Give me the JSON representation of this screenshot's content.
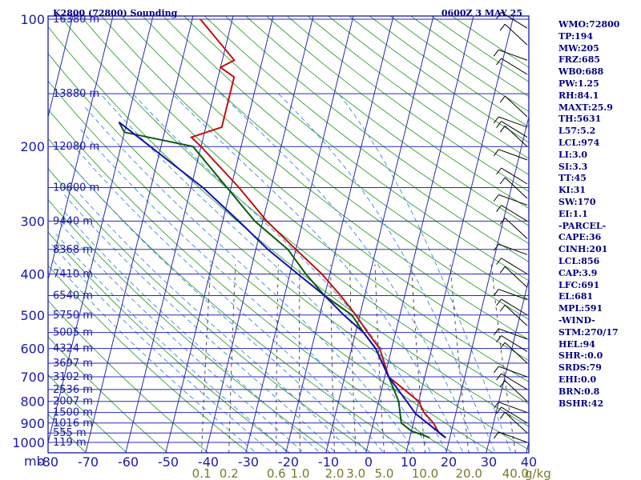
{
  "chart_data": {
    "type": "line",
    "title": "K2800 (72800) Sounding",
    "time": "0600Z  3 MAY 25",
    "pressure_axis_unit": "mb",
    "pressure_ticks": [
      100,
      200,
      300,
      400,
      500,
      600,
      700,
      800,
      900,
      1000
    ],
    "temperature_ticks": [
      "-80",
      "-70",
      "-60",
      "-50",
      "-40",
      "-30",
      "-20",
      "-10",
      "0",
      "10",
      "20",
      "30",
      "40"
    ],
    "mixing_ratio_labels": [
      "0.1",
      "0.2",
      "0.6",
      "1.0",
      "2.0",
      "3.0",
      "5.0",
      "10.0",
      "20.0",
      "40.0"
    ],
    "mixing_ratio_unit": "g/kg",
    "height_labels": [
      {
        "p": 100,
        "label": "16380 m"
      },
      {
        "p": 150,
        "label": "13880 m"
      },
      {
        "p": 200,
        "label": "12080 m"
      },
      {
        "p": 250,
        "label": "10600 m"
      },
      {
        "p": 300,
        "label": "9440 m"
      },
      {
        "p": 350,
        "label": "8368 m"
      },
      {
        "p": 400,
        "label": "7410 m"
      },
      {
        "p": 450,
        "label": "6540 m"
      },
      {
        "p": 500,
        "label": "5750 m"
      },
      {
        "p": 550,
        "label": "5005 m"
      },
      {
        "p": 600,
        "label": "4324 m"
      },
      {
        "p": 650,
        "label": "3697 m"
      },
      {
        "p": 700,
        "label": "3102 m"
      },
      {
        "p": 750,
        "label": "2536 m"
      },
      {
        "p": 800,
        "label": "2007 m"
      },
      {
        "p": 850,
        "label": "1500 m"
      },
      {
        "p": 900,
        "label": "1016 m"
      },
      {
        "p": 950,
        "label": "555 m"
      },
      {
        "p": 1000,
        "label": "119 m"
      }
    ],
    "series": [
      {
        "key": "temperature",
        "color": "#c01010",
        "points": [
          {
            "p": 100,
            "t": -68
          },
          {
            "p": 125,
            "t": -57
          },
          {
            "p": 130,
            "t": -60
          },
          {
            "p": 137,
            "t": -56
          },
          {
            "p": 180,
            "t": -56
          },
          {
            "p": 190,
            "t": -63
          },
          {
            "p": 200,
            "t": -60
          },
          {
            "p": 250,
            "t": -48
          },
          {
            "p": 300,
            "t": -39
          },
          {
            "p": 350,
            "t": -30
          },
          {
            "p": 400,
            "t": -22
          },
          {
            "p": 450,
            "t": -16
          },
          {
            "p": 500,
            "t": -11
          },
          {
            "p": 550,
            "t": -7
          },
          {
            "p": 600,
            "t": -3
          },
          {
            "p": 700,
            "t": 1
          },
          {
            "p": 800,
            "t": 10
          },
          {
            "p": 850,
            "t": 12
          },
          {
            "p": 900,
            "t": 15
          },
          {
            "p": 950,
            "t": 17
          },
          {
            "p": 975,
            "t": 19
          }
        ]
      },
      {
        "key": "dewpoint",
        "color": "#0a5a0a",
        "points": [
          {
            "p": 175,
            "t": -82
          },
          {
            "p": 185,
            "t": -80
          },
          {
            "p": 200,
            "t": -62
          },
          {
            "p": 250,
            "t": -51
          },
          {
            "p": 300,
            "t": -42
          },
          {
            "p": 350,
            "t": -32
          },
          {
            "p": 400,
            "t": -26
          },
          {
            "p": 450,
            "t": -20
          },
          {
            "p": 500,
            "t": -12
          },
          {
            "p": 550,
            "t": -8
          },
          {
            "p": 600,
            "t": -4
          },
          {
            "p": 700,
            "t": 1
          },
          {
            "p": 800,
            "t": 5
          },
          {
            "p": 850,
            "t": 6
          },
          {
            "p": 900,
            "t": 7
          },
          {
            "p": 940,
            "t": 10
          },
          {
            "p": 960,
            "t": 13
          },
          {
            "p": 975,
            "t": 15
          }
        ]
      },
      {
        "key": "parcel",
        "color": "#1010b0",
        "points": [
          {
            "p": 175,
            "t": -82
          },
          {
            "p": 250,
            "t": -57
          },
          {
            "p": 300,
            "t": -46
          },
          {
            "p": 350,
            "t": -37
          },
          {
            "p": 400,
            "t": -28
          },
          {
            "p": 450,
            "t": -20
          },
          {
            "p": 500,
            "t": -14
          },
          {
            "p": 550,
            "t": -8
          },
          {
            "p": 600,
            "t": -4
          },
          {
            "p": 700,
            "t": 1
          },
          {
            "p": 800,
            "t": 7
          },
          {
            "p": 856,
            "t": 10
          },
          {
            "p": 975,
            "t": 19
          }
        ]
      }
    ],
    "indices": [
      "WMO:72800",
      "TP:194",
      "MW:205",
      "FRZ:685",
      "WB0:688",
      "PW:1.25",
      "RH:84.1",
      "MAXT:25.9",
      "TH:5631",
      "L57:5.2",
      "LCL:974",
      "LI:3.0",
      "SI:3.3",
      "TT:45",
      "KI:31",
      "SW:170",
      "EI:1.1",
      "-PARCEL-",
      "CAPE:36",
      "CINH:201",
      "LCL:856",
      "CAP:3.9",
      "LFC:691",
      "EL:681",
      "MPL:591",
      "-WIND-",
      "STM:270/17",
      "HEL:94",
      "SHR-:0.0",
      "SRDS:79",
      "EHI:0.0",
      "BRN:0.8",
      "BSHR:42"
    ]
  }
}
